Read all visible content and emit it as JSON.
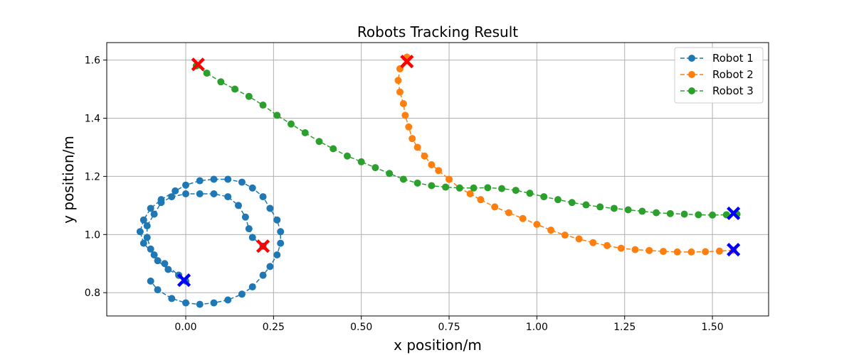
{
  "chart_data": {
    "type": "scatter",
    "title": "Robots Tracking Result",
    "xlabel": "x position/m",
    "ylabel": "y position/m",
    "xlim": [
      -0.225,
      1.66
    ],
    "ylim": [
      0.72,
      1.66
    ],
    "xticks": [
      0.0,
      0.25,
      0.5,
      0.75,
      1.0,
      1.25,
      1.5
    ],
    "xtick_labels": [
      "0.00",
      "0.25",
      "0.50",
      "0.75",
      "1.00",
      "1.25",
      "1.50"
    ],
    "yticks": [
      0.8,
      1.0,
      1.2,
      1.4,
      1.6
    ],
    "ytick_labels": [
      "0.8",
      "1.0",
      "1.2",
      "1.4",
      "1.6"
    ],
    "grid": true,
    "legend_position": "top-right",
    "series": [
      {
        "name": "Robot 1",
        "color": "#1f77b4",
        "style": "dashed-line-circle-markers",
        "points": [
          [
            0.22,
            0.96
          ],
          [
            0.19,
            0.99
          ],
          [
            0.18,
            1.02
          ],
          [
            0.17,
            1.06
          ],
          [
            0.15,
            1.1
          ],
          [
            0.12,
            1.13
          ],
          [
            0.08,
            1.14
          ],
          [
            0.04,
            1.14
          ],
          [
            0.0,
            1.14
          ],
          [
            -0.04,
            1.13
          ],
          [
            -0.07,
            1.11
          ],
          [
            -0.09,
            1.07
          ],
          [
            -0.11,
            1.03
          ],
          [
            -0.11,
            0.99
          ],
          [
            -0.1,
            0.95
          ],
          [
            -0.08,
            0.91
          ],
          [
            -0.05,
            0.88
          ],
          [
            -0.02,
            0.86
          ],
          [
            0.0,
            0.84
          ],
          [
            -0.02,
            0.86
          ],
          [
            -0.06,
            0.9
          ],
          [
            -0.09,
            0.93
          ],
          [
            -0.12,
            0.97
          ],
          [
            -0.13,
            1.01
          ],
          [
            -0.12,
            1.05
          ],
          [
            -0.1,
            1.09
          ],
          [
            -0.07,
            1.12
          ],
          [
            -0.03,
            1.15
          ],
          [
            0.0,
            1.17
          ],
          [
            0.04,
            1.185
          ],
          [
            0.08,
            1.19
          ],
          [
            0.12,
            1.19
          ],
          [
            0.16,
            1.18
          ],
          [
            0.19,
            1.16
          ],
          [
            0.22,
            1.13
          ],
          [
            0.24,
            1.09
          ],
          [
            0.26,
            1.05
          ],
          [
            0.27,
            1.01
          ],
          [
            0.27,
            0.97
          ],
          [
            0.26,
            0.93
          ],
          [
            0.24,
            0.89
          ],
          [
            0.22,
            0.86
          ],
          [
            0.19,
            0.82
          ],
          [
            0.16,
            0.795
          ],
          [
            0.12,
            0.775
          ],
          [
            0.08,
            0.765
          ],
          [
            0.04,
            0.76
          ],
          [
            0.0,
            0.765
          ],
          [
            -0.04,
            0.78
          ],
          [
            -0.08,
            0.81
          ],
          [
            -0.1,
            0.84
          ]
        ],
        "start": [
          0.22,
          0.96
        ],
        "end": [
          -0.005,
          0.843
        ]
      },
      {
        "name": "Robot 2",
        "color": "#ff7f0e",
        "style": "dashed-line-circle-markers",
        "points": [
          [
            0.63,
            1.61
          ],
          [
            0.61,
            1.57
          ],
          [
            0.605,
            1.53
          ],
          [
            0.61,
            1.49
          ],
          [
            0.62,
            1.45
          ],
          [
            0.625,
            1.41
          ],
          [
            0.635,
            1.37
          ],
          [
            0.645,
            1.33
          ],
          [
            0.66,
            1.3
          ],
          [
            0.68,
            1.27
          ],
          [
            0.7,
            1.24
          ],
          [
            0.72,
            1.22
          ],
          [
            0.75,
            1.19
          ],
          [
            0.78,
            1.16
          ],
          [
            0.81,
            1.14
          ],
          [
            0.84,
            1.12
          ],
          [
            0.88,
            1.095
          ],
          [
            0.92,
            1.075
          ],
          [
            0.96,
            1.055
          ],
          [
            1.0,
            1.035
          ],
          [
            1.04,
            1.015
          ],
          [
            1.08,
            0.998
          ],
          [
            1.12,
            0.985
          ],
          [
            1.16,
            0.972
          ],
          [
            1.2,
            0.962
          ],
          [
            1.24,
            0.953
          ],
          [
            1.28,
            0.948
          ],
          [
            1.32,
            0.945
          ],
          [
            1.36,
            0.942
          ],
          [
            1.4,
            0.94
          ],
          [
            1.44,
            0.94
          ],
          [
            1.48,
            0.941
          ],
          [
            1.52,
            0.943
          ],
          [
            1.56,
            0.946
          ]
        ],
        "start": [
          0.63,
          1.595
        ],
        "end": [
          1.56,
          0.948
        ]
      },
      {
        "name": "Robot 3",
        "color": "#2ca02c",
        "style": "dashed-line-circle-markers",
        "points": [
          [
            0.03,
            1.58
          ],
          [
            0.06,
            1.555
          ],
          [
            0.1,
            1.525
          ],
          [
            0.14,
            1.5
          ],
          [
            0.18,
            1.475
          ],
          [
            0.22,
            1.445
          ],
          [
            0.26,
            1.41
          ],
          [
            0.3,
            1.38
          ],
          [
            0.34,
            1.35
          ],
          [
            0.38,
            1.32
          ],
          [
            0.42,
            1.295
          ],
          [
            0.46,
            1.27
          ],
          [
            0.5,
            1.25
          ],
          [
            0.54,
            1.23
          ],
          [
            0.58,
            1.21
          ],
          [
            0.62,
            1.19
          ],
          [
            0.66,
            1.177
          ],
          [
            0.7,
            1.168
          ],
          [
            0.74,
            1.163
          ],
          [
            0.78,
            1.16
          ],
          [
            0.82,
            1.16
          ],
          [
            0.86,
            1.161
          ],
          [
            0.9,
            1.158
          ],
          [
            0.94,
            1.152
          ],
          [
            0.98,
            1.142
          ],
          [
            1.02,
            1.13
          ],
          [
            1.06,
            1.12
          ],
          [
            1.1,
            1.11
          ],
          [
            1.14,
            1.102
          ],
          [
            1.18,
            1.095
          ],
          [
            1.22,
            1.09
          ],
          [
            1.26,
            1.085
          ],
          [
            1.3,
            1.08
          ],
          [
            1.34,
            1.075
          ],
          [
            1.38,
            1.072
          ],
          [
            1.42,
            1.07
          ],
          [
            1.46,
            1.068
          ],
          [
            1.5,
            1.067
          ],
          [
            1.54,
            1.068
          ],
          [
            1.57,
            1.07
          ]
        ],
        "start": [
          0.035,
          1.585
        ],
        "end": [
          1.56,
          1.073
        ]
      }
    ],
    "start_marker_color": "#ff0000",
    "end_marker_color": "#0000ff"
  }
}
